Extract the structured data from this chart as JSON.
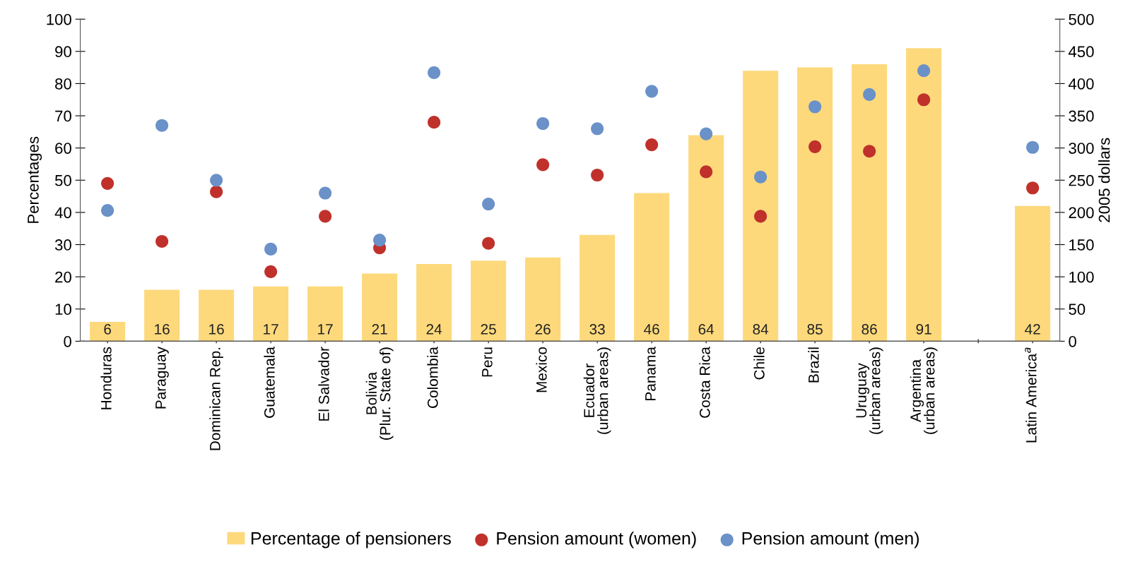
{
  "chart_data": {
    "type": "bar",
    "categories": [
      "Honduras",
      "Paraguay",
      "Dominican Rep.",
      "Guatemala",
      "El Salvador",
      "Bolivia\n(Plur. State of)",
      "Colombia",
      "Peru",
      "Mexico",
      "Ecuador\n(urban areas)",
      "Panama",
      "Costa Rica",
      "Chile",
      "Brazil",
      "Uruguay\n(urban areas)",
      "Argentina\n(urban areas)",
      null,
      "Latin America$^{a}$"
    ],
    "ylabel": "Percentages",
    "y2label": "2005 dollars",
    "ylim": [
      0,
      100
    ],
    "yticks": [
      0,
      10,
      20,
      30,
      40,
      50,
      60,
      70,
      80,
      90,
      100
    ],
    "y2lim": [
      0,
      500
    ],
    "y2ticks": [
      0,
      50,
      100,
      150,
      200,
      250,
      300,
      350,
      400,
      450,
      500
    ],
    "series": [
      {
        "name": "Percentage of pensioners",
        "color": "#fdd97c",
        "values": [
          6,
          16,
          16,
          17,
          17,
          21,
          24,
          25,
          26,
          33,
          46,
          64,
          84,
          85,
          86,
          91,
          null,
          42
        ],
        "value_labels": [
          "6",
          "16",
          "16",
          "17",
          "17",
          "21",
          "24",
          "25",
          "26",
          "33",
          "46",
          "64",
          "84",
          "85",
          "86",
          "91",
          null,
          "42"
        ]
      },
      {
        "name": "Pension amount (women)",
        "type": "scatter",
        "axis": "y2",
        "color": "#c0312b",
        "values": [
          245,
          155,
          232,
          108,
          194,
          145,
          340,
          152,
          274,
          258,
          305,
          263,
          194,
          302,
          295,
          375,
          null,
          238
        ]
      },
      {
        "name": "Pension amount (men)",
        "type": "scatter",
        "axis": "y2",
        "color": "#6a91c8",
        "values": [
          203,
          335,
          250,
          143,
          230,
          157,
          417,
          213,
          338,
          330,
          388,
          322,
          255,
          364,
          383,
          420,
          null,
          301
        ]
      }
    ],
    "legend": "bottom",
    "grid": false,
    "marker": "circle"
  }
}
